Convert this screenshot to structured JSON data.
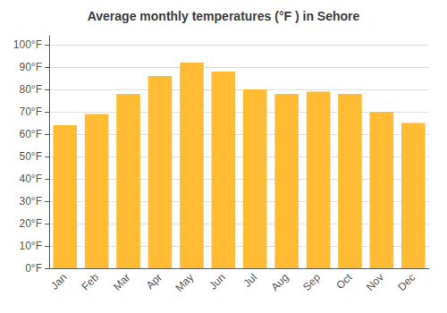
{
  "chart_data": {
    "type": "bar",
    "title": "Average monthly temperatures (°F ) in Sehore",
    "categories": [
      "Jan",
      "Feb",
      "Mar",
      "Apr",
      "May",
      "Jun",
      "Jul",
      "Aug",
      "Sep",
      "Oct",
      "Nov",
      "Dec"
    ],
    "values": [
      64,
      69,
      78,
      86,
      92,
      88,
      80,
      78,
      79,
      78,
      70,
      65
    ],
    "color": "#FFBB33",
    "ylim": [
      0,
      104
    ],
    "yticks": [
      {
        "value": 0,
        "label": "0°F"
      },
      {
        "value": 10,
        "label": "10°F"
      },
      {
        "value": 20,
        "label": "20°F"
      },
      {
        "value": 30,
        "label": "30°F"
      },
      {
        "value": 40,
        "label": "40°F"
      },
      {
        "value": 50,
        "label": "50°F"
      },
      {
        "value": 60,
        "label": "60°F"
      },
      {
        "value": 70,
        "label": "70°F"
      },
      {
        "value": 80,
        "label": "80°F"
      },
      {
        "value": 90,
        "label": "90°F"
      },
      {
        "value": 100,
        "label": "100°F"
      }
    ],
    "grid": true
  }
}
